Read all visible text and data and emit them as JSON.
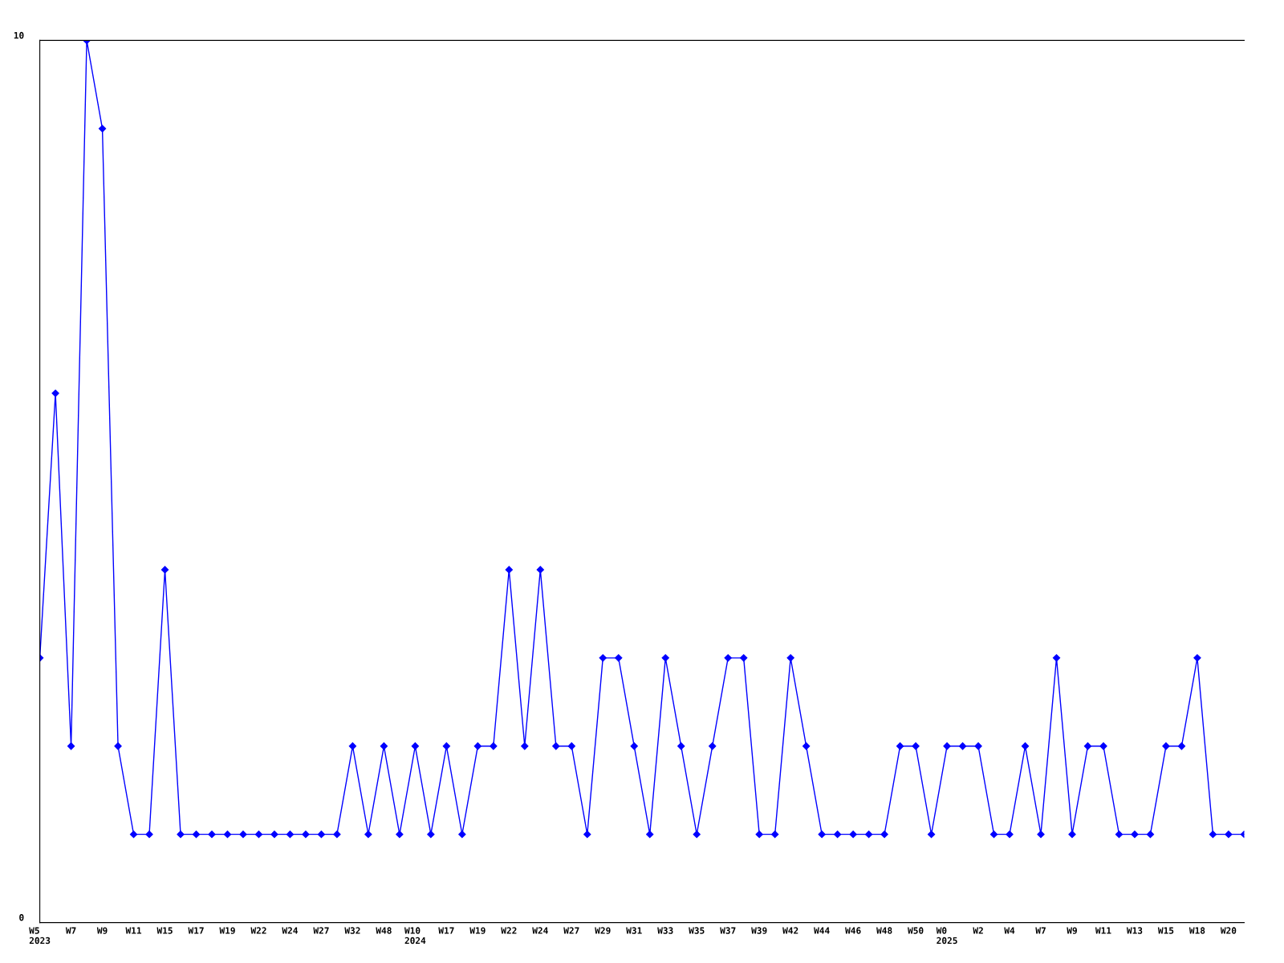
{
  "chart_data": {
    "type": "line",
    "categories": [
      "W5\n2023",
      null,
      "W7",
      null,
      "W9",
      null,
      "W11",
      null,
      "W15",
      null,
      "W17",
      null,
      "W19",
      null,
      "W22",
      null,
      "W24",
      null,
      "W27",
      null,
      "W32",
      null,
      "W48",
      null,
      "W10\n2024",
      null,
      "W17",
      null,
      "W19",
      null,
      "W22",
      null,
      "W24",
      null,
      "W27",
      null,
      "W29",
      null,
      "W31",
      null,
      "W33",
      null,
      "W35",
      null,
      "W37",
      null,
      "W39",
      null,
      "W42",
      null,
      "W44",
      null,
      "W46",
      null,
      "W48",
      null,
      "W50",
      null,
      "W0\n2025",
      null,
      "W2",
      null,
      "W4",
      null,
      "W7",
      null,
      "W9",
      null,
      "W11",
      null,
      "W13",
      null,
      "W15",
      null,
      "W18",
      null,
      "W20",
      null
    ],
    "series": [
      {
        "color": "#0000ff",
        "values": [
          3,
          6,
          2,
          10,
          9,
          2,
          1,
          1,
          4,
          1,
          1,
          1,
          1,
          1,
          1,
          1,
          1,
          1,
          1,
          1,
          2,
          1,
          2,
          1,
          2,
          1,
          2,
          1,
          2,
          2,
          4,
          2,
          4,
          2,
          2,
          1,
          3,
          3,
          2,
          1,
          3,
          2,
          1,
          2,
          3,
          3,
          1,
          1,
          3,
          2,
          1,
          1,
          1,
          1,
          1,
          2,
          2,
          1,
          2,
          2,
          2,
          1,
          1,
          2,
          1,
          3,
          1,
          2,
          2,
          1,
          1,
          1,
          2,
          2,
          3,
          1,
          1,
          1
        ]
      }
    ],
    "ylim": [
      0,
      10
    ],
    "yticks": [
      0,
      10
    ],
    "grid": false,
    "marker": "diamond",
    "line_style": "solid"
  }
}
